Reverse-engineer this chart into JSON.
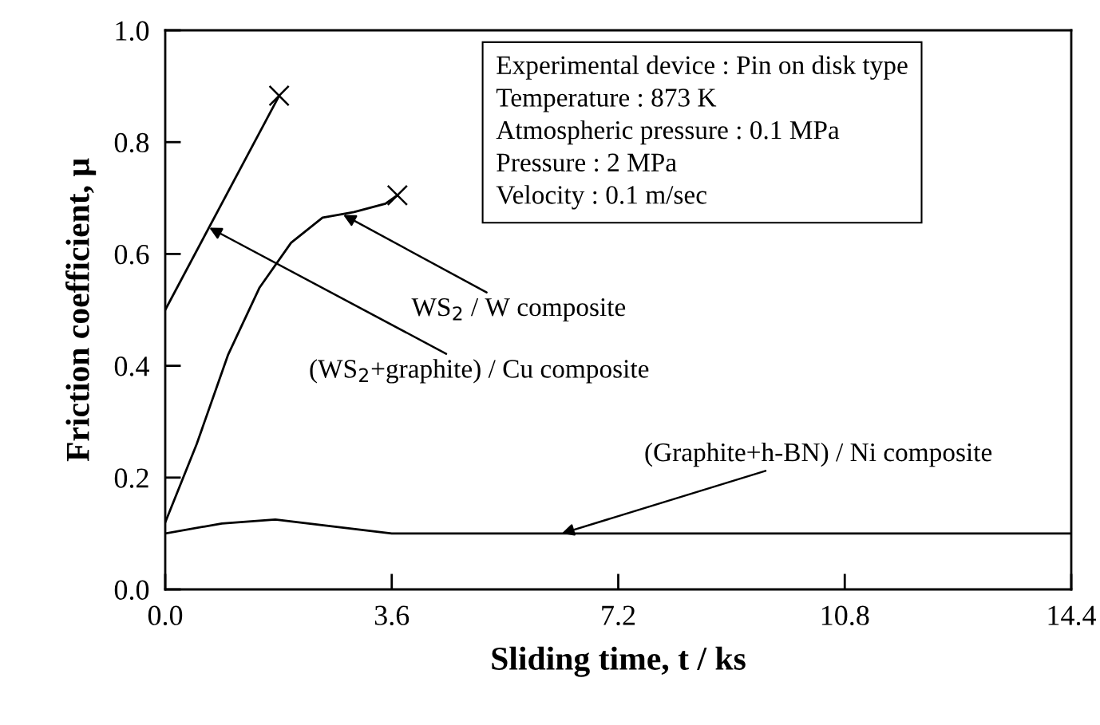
{
  "chart_data": {
    "type": "line",
    "xlabel": "Sliding time, t / ks",
    "ylabel": "Friction coefficient, μ",
    "xlim": [
      0,
      14.4
    ],
    "xticks": [
      {
        "value": 0,
        "label": "0.0"
      },
      3.6,
      7.2,
      10.8,
      14.4
    ],
    "ylim": [
      0,
      1.0
    ],
    "yticks": [
      {
        "value": 0,
        "label": "0.0"
      },
      0.2,
      0.4,
      0.6,
      0.8,
      {
        "value": 1,
        "label": "1.0"
      }
    ],
    "grid": false,
    "legend": false,
    "series": [
      {
        "color": "#000000",
        "x": [
          0,
          1.81
        ],
        "values": [
          0.5,
          0.883
        ]
      },
      {
        "color": "#000000",
        "x": [
          0,
          0.5,
          1.0,
          1.5,
          2.0,
          2.5,
          3.0,
          3.5,
          3.69
        ],
        "values": [
          0.12,
          0.26,
          0.42,
          0.54,
          0.62,
          0.665,
          0.675,
          0.69,
          0.705
        ]
      },
      {
        "color": "#000000",
        "x": [
          0,
          0.9,
          1.75,
          2.7,
          3.6,
          14.4
        ],
        "values": [
          0.1,
          0.118,
          0.125,
          0.112,
          0.1,
          0.1
        ]
      },
      {
        "type": "scatter",
        "color": "#000000",
        "marker": "cross",
        "x": [
          1.81,
          3.69
        ],
        "values": [
          0.883,
          0.705
        ]
      }
    ],
    "annotations": [
      {
        "text": "WS$_{2}$ / W composite",
        "x": 2.83,
        "y": 0.67
      },
      {
        "text": "(WS$_{2}$+graphite) / Cu composite",
        "x": 0.7,
        "y": 0.647
      },
      {
        "text": "(Graphite+h-BN) / Ni composite",
        "x": 6.3,
        "y": 0.1
      },
      "Experimental device : Pin on disk type\nTemperature : 873 K\nAtmospheric pressure : 0.1 MPa\nPressure : 2 MPa\nVelocity : 0.1 m/sec"
    ]
  }
}
